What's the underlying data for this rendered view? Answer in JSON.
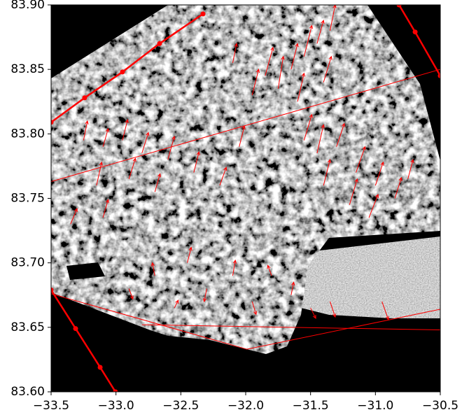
{
  "chart_data": {
    "type": "quiver",
    "xlim": [
      -33.5,
      -30.5
    ],
    "ylim": [
      83.6,
      83.9
    ],
    "xticks": [
      {
        "value": -33.5,
        "label": "−33.5"
      },
      {
        "value": -33.0,
        "label": "−33.0"
      },
      {
        "value": -32.5,
        "label": "−32.5"
      },
      {
        "value": -32.0,
        "label": "−32.0"
      },
      {
        "value": -31.5,
        "label": "−31.5"
      },
      {
        "value": -31.0,
        "label": "−31.0"
      },
      {
        "value": -30.5,
        "label": "−30.5"
      }
    ],
    "yticks": [
      {
        "value": 83.6,
        "label": "83.60"
      },
      83.65,
      {
        "value": 83.7,
        "label": "83.70"
      },
      83.75,
      {
        "value": 83.8,
        "label": "83.80"
      },
      83.85,
      {
        "value": 83.9,
        "label": "83.90"
      }
    ],
    "color": "#ff0000",
    "x": [
      -31.95,
      -31.85,
      -31.75,
      -31.65,
      -31.55,
      -31.45,
      -31.35,
      -31.6,
      -31.4,
      -32.1,
      -31.55,
      -31.45,
      -31.3,
      -31.15,
      -31.0,
      -30.85,
      -31.2,
      -31.05,
      -31.4,
      -30.75,
      -33.25,
      -33.1,
      -32.95,
      -32.8,
      -32.6,
      -32.4,
      -33.15,
      -32.9,
      -32.7,
      -33.35,
      -33.1,
      -32.2,
      -32.05,
      -32.9,
      -32.7,
      -32.45,
      -32.3,
      -32.1,
      -31.95,
      -31.8,
      -31.65,
      -32.55,
      -31.5,
      -31.35,
      -30.95
    ],
    "y": [
      83.83,
      83.845,
      83.835,
      83.85,
      83.86,
      83.87,
      83.88,
      83.825,
      83.84,
      83.855,
      83.795,
      83.785,
      83.79,
      83.77,
      83.76,
      83.75,
      83.745,
      83.735,
      83.76,
      83.765,
      83.795,
      83.79,
      83.795,
      83.785,
      83.78,
      83.77,
      83.76,
      83.765,
      83.755,
      83.73,
      83.735,
      83.76,
      83.79,
      83.68,
      83.69,
      83.7,
      83.68,
      83.69,
      83.67,
      83.69,
      83.675,
      83.665,
      83.665,
      83.67,
      83.67
    ],
    "u": [
      0.05,
      0.06,
      0.04,
      0.05,
      0.06,
      0.05,
      0.04,
      0.05,
      0.06,
      0.03,
      0.06,
      0.05,
      0.06,
      0.07,
      0.06,
      0.05,
      0.06,
      0.07,
      0.05,
      0.04,
      0.03,
      0.04,
      0.04,
      0.05,
      0.05,
      0.04,
      0.04,
      0.05,
      0.04,
      0.05,
      0.04,
      0.05,
      0.04,
      0.03,
      -0.02,
      0.03,
      -0.02,
      0.02,
      0.03,
      -0.03,
      0.02,
      0.03,
      0.04,
      0.04,
      0.05
    ],
    "v": [
      0.02,
      0.022,
      0.025,
      0.02,
      0.024,
      0.018,
      0.02,
      0.022,
      0.02,
      0.015,
      0.02,
      0.022,
      0.018,
      0.02,
      0.018,
      0.016,
      0.02,
      0.018,
      0.02,
      0.015,
      0.015,
      0.014,
      0.016,
      0.016,
      0.018,
      0.016,
      0.018,
      0.016,
      0.014,
      0.012,
      0.014,
      0.014,
      0.016,
      -0.008,
      0.01,
      0.012,
      -0.01,
      0.012,
      -0.01,
      0.008,
      0.01,
      0.006,
      -0.008,
      -0.012,
      -0.014
    ],
    "tracks": [
      {
        "x": [
          -33.5,
          -33.241,
          -32.95,
          -32.664,
          -32.329
        ],
        "y": [
          83.809,
          83.828,
          83.848,
          83.87,
          83.893
        ],
        "marker": true
      },
      {
        "x": [
          -30.818,
          -30.694,
          -30.5
        ],
        "y": [
          83.9,
          83.879,
          83.845
        ],
        "marker": true
      },
      {
        "x": [
          -33.5,
          -33.311,
          -33.122,
          -33.004
        ],
        "y": [
          83.679,
          83.649,
          83.619,
          83.6
        ],
        "marker": true
      },
      {
        "x": [
          -33.5,
          -30.5
        ],
        "y": [
          83.763,
          83.85
        ],
        "marker": false
      },
      {
        "x": [
          -33.5,
          -31.99,
          -30.5
        ],
        "y": [
          83.676,
          83.633,
          83.664
        ],
        "marker": false
      },
      {
        "x": [
          -32.8,
          -30.5
        ],
        "y": [
          83.652,
          83.648
        ],
        "marker": false
      }
    ]
  }
}
